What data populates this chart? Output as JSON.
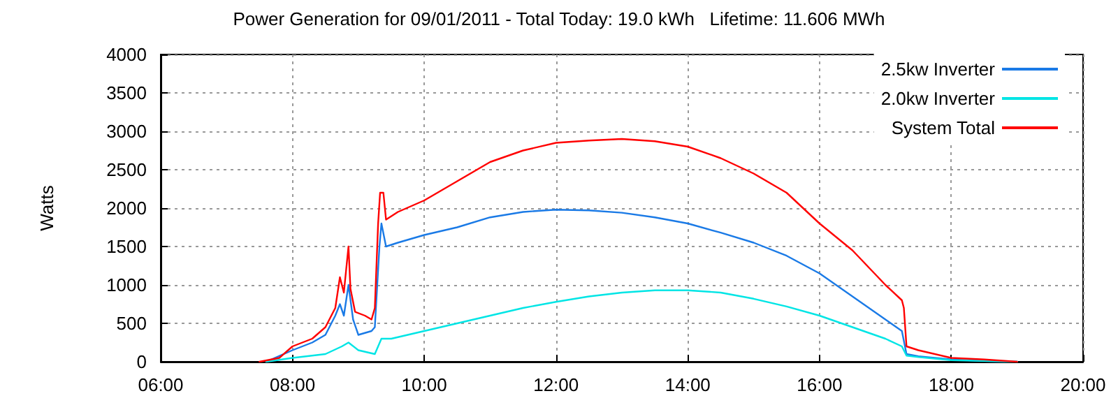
{
  "chart_data": {
    "type": "line",
    "title": "Power Generation for 09/01/2011 - Total Today: 19.0 kWh   Lifetime: 11.606 MWh",
    "ylabel": "Watts",
    "xlim": [
      6,
      20
    ],
    "xticks": [
      {
        "value": 6,
        "label": "06:00"
      },
      {
        "value": 8,
        "label": "08:00"
      },
      {
        "value": 10,
        "label": "10:00"
      },
      {
        "value": 12,
        "label": "12:00"
      },
      {
        "value": 14,
        "label": "14:00"
      },
      {
        "value": 16,
        "label": "16:00"
      },
      {
        "value": 18,
        "label": "18:00"
      },
      {
        "value": 20,
        "label": "20:00"
      }
    ],
    "ylim": [
      0,
      4000
    ],
    "yticks": [
      0,
      500,
      1000,
      1500,
      2000,
      2500,
      3000,
      3500,
      4000
    ],
    "grid": true,
    "legend": "top right",
    "marker": "none",
    "line_style": "solid",
    "series": [
      {
        "name": "2.5kw Inverter",
        "color": "#1a7ae6",
        "x": [
          7.6,
          8.0,
          8.3,
          8.5,
          8.65,
          8.72,
          8.78,
          8.85,
          8.92,
          9.0,
          9.2,
          9.25,
          9.32,
          9.35,
          9.42,
          9.6,
          10.0,
          10.5,
          11.0,
          11.5,
          12.0,
          12.5,
          13.0,
          13.5,
          14.0,
          14.5,
          15.0,
          15.5,
          16.0,
          16.5,
          17.0,
          17.25,
          17.32,
          17.5,
          18.0,
          18.5,
          19.0
        ],
        "values": [
          0,
          150,
          250,
          350,
          600,
          750,
          600,
          1000,
          550,
          350,
          400,
          450,
          1500,
          1800,
          1500,
          1550,
          1650,
          1750,
          1880,
          1950,
          1980,
          1970,
          1940,
          1880,
          1800,
          1680,
          1550,
          1380,
          1150,
          850,
          550,
          400,
          100,
          70,
          30,
          10,
          0
        ]
      },
      {
        "name": "2.0kw Inverter",
        "color": "#00e5e5",
        "x": [
          7.6,
          8.0,
          8.5,
          8.75,
          8.85,
          9.0,
          9.25,
          9.35,
          9.5,
          10.0,
          10.5,
          11.0,
          11.5,
          12.0,
          12.5,
          13.0,
          13.5,
          14.0,
          14.5,
          15.0,
          15.5,
          16.0,
          16.5,
          17.0,
          17.25,
          17.32,
          17.5,
          18.0,
          19.0
        ],
        "values": [
          0,
          50,
          100,
          200,
          250,
          150,
          100,
          300,
          300,
          400,
          500,
          600,
          700,
          780,
          850,
          900,
          930,
          930,
          900,
          820,
          720,
          600,
          450,
          300,
          200,
          80,
          60,
          20,
          0
        ]
      },
      {
        "name": "System Total",
        "color": "#ff0000",
        "x": [
          7.5,
          7.8,
          8.0,
          8.3,
          8.5,
          8.65,
          8.72,
          8.78,
          8.85,
          8.88,
          8.95,
          9.1,
          9.2,
          9.25,
          9.3,
          9.33,
          9.38,
          9.42,
          9.6,
          10.0,
          10.5,
          11.0,
          11.5,
          12.0,
          12.5,
          13.0,
          13.5,
          14.0,
          14.5,
          15.0,
          15.5,
          16.0,
          16.5,
          17.0,
          17.25,
          17.28,
          17.32,
          17.5,
          18.0,
          18.5,
          19.0
        ],
        "values": [
          0,
          50,
          200,
          300,
          450,
          700,
          1100,
          900,
          1500,
          950,
          650,
          600,
          550,
          700,
          1800,
          2200,
          2200,
          1850,
          1950,
          2100,
          2350,
          2600,
          2750,
          2850,
          2880,
          2900,
          2870,
          2800,
          2650,
          2450,
          2200,
          1800,
          1450,
          1000,
          800,
          700,
          200,
          150,
          50,
          30,
          0
        ]
      }
    ]
  }
}
